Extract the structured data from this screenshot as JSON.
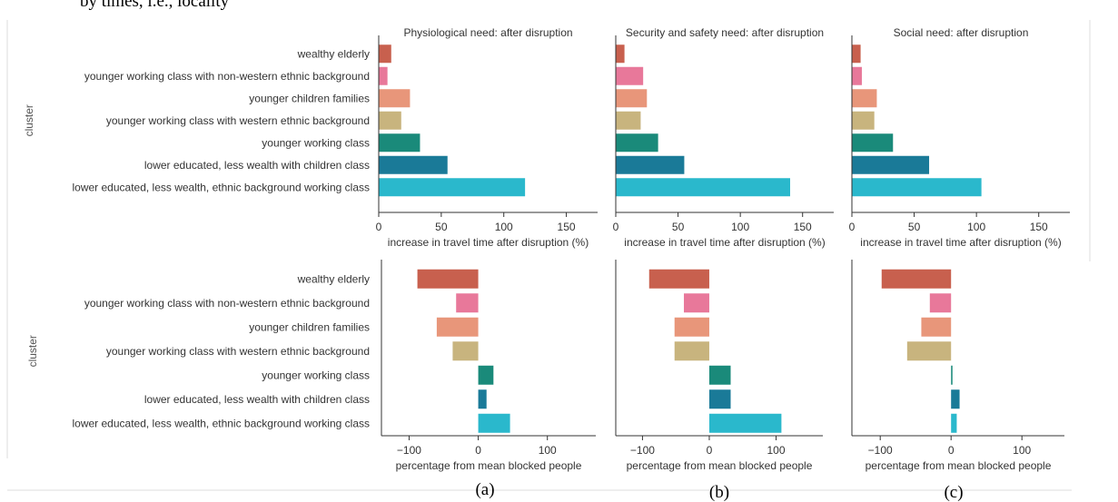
{
  "header_fragment": "by times, i.e., locality",
  "chart_data": [
    {
      "id": "a-top",
      "type": "bar",
      "orientation": "horizontal",
      "title": "Physiological need: after disruption",
      "xlabel": "increase in travel time after disruption (%)",
      "ylabel": "cluster",
      "xlim": [
        0,
        175
      ],
      "xticks": [
        0,
        50,
        100,
        150
      ],
      "categories": [
        "wealthy elderly",
        "younger working class with non-western ethnic background",
        "younger children families",
        "younger working class with western ethnic background",
        "younger working class",
        "lower educated, less wealth with children class",
        "lower educated, less wealth, ethnic background working class"
      ],
      "values": [
        10,
        7,
        25,
        18,
        33,
        55,
        117
      ],
      "grid": false
    },
    {
      "id": "b-top",
      "type": "bar",
      "orientation": "horizontal",
      "title": "Security and safety need: after disruption",
      "xlabel": "increase in travel time after disruption (%)",
      "ylabel": "",
      "xlim": [
        0,
        175
      ],
      "xticks": [
        0,
        50,
        100,
        150
      ],
      "categories": [
        "wealthy elderly",
        "younger working class with non-western ethnic background",
        "younger children families",
        "younger working class with western ethnic background",
        "younger working class",
        "lower educated, less wealth with children class",
        "lower educated, less wealth, ethnic background working class"
      ],
      "values": [
        7,
        22,
        25,
        20,
        34,
        55,
        140
      ],
      "grid": false
    },
    {
      "id": "c-top",
      "type": "bar",
      "orientation": "horizontal",
      "title": "Social need: after disruption",
      "xlabel": "increase in travel time after disruption (%)",
      "ylabel": "",
      "xlim": [
        0,
        175
      ],
      "xticks": [
        0,
        50,
        100,
        150
      ],
      "categories": [
        "wealthy elderly",
        "younger working class with non-western ethnic background",
        "younger children families",
        "younger working class with western ethnic background",
        "younger working class",
        "lower educated, less wealth with children class",
        "lower educated, less wealth, ethnic background working class"
      ],
      "values": [
        7,
        8,
        20,
        18,
        33,
        62,
        104
      ],
      "grid": false
    },
    {
      "id": "a-bottom",
      "type": "bar",
      "orientation": "horizontal",
      "title": "",
      "xlabel": "percentage from mean blocked people",
      "ylabel": "cluster",
      "xlim": [
        -140,
        170
      ],
      "xticks": [
        -100,
        0,
        100
      ],
      "categories": [
        "wealthy elderly",
        "younger working class with non-western ethnic background",
        "younger children families",
        "younger working class with western ethnic background",
        "younger working class",
        "lower educated, less wealth with children class",
        "lower educated, less wealth, ethnic background working class"
      ],
      "values": [
        -88,
        -32,
        -60,
        -37,
        22,
        12,
        46
      ],
      "grid": false
    },
    {
      "id": "b-bottom",
      "type": "bar",
      "orientation": "horizontal",
      "title": "",
      "xlabel": "percentage from mean blocked people",
      "ylabel": "",
      "xlim": [
        -140,
        170
      ],
      "xticks": [
        -100,
        0,
        100
      ],
      "categories": [
        "wealthy elderly",
        "younger working class with non-western ethnic background",
        "younger children families",
        "younger working class with western ethnic background",
        "younger working class",
        "lower educated, less wealth with children class",
        "lower educated, less wealth, ethnic background working class"
      ],
      "values": [
        -90,
        -38,
        -52,
        -52,
        32,
        32,
        108
      ],
      "grid": false
    },
    {
      "id": "c-bottom",
      "type": "bar",
      "orientation": "horizontal",
      "title": "",
      "xlabel": "percentage from mean blocked people",
      "ylabel": "",
      "xlim": [
        -140,
        160
      ],
      "xticks": [
        -100,
        0,
        100
      ],
      "categories": [
        "wealthy elderly",
        "younger working class with non-western ethnic background",
        "younger children families",
        "younger working class with western ethnic background",
        "younger working class",
        "lower educated, less wealth with children class",
        "lower educated, less wealth, ethnic background working class"
      ],
      "values": [
        -98,
        -30,
        -42,
        -62,
        2,
        12,
        8
      ],
      "grid": false
    }
  ],
  "bar_colors": [
    "#c8604e",
    "#e8789a",
    "#e8967a",
    "#c8b47e",
    "#1a8a7a",
    "#1a7a98",
    "#2ab8cc"
  ],
  "captions": [
    "(a)",
    "(b)",
    "(c)"
  ]
}
